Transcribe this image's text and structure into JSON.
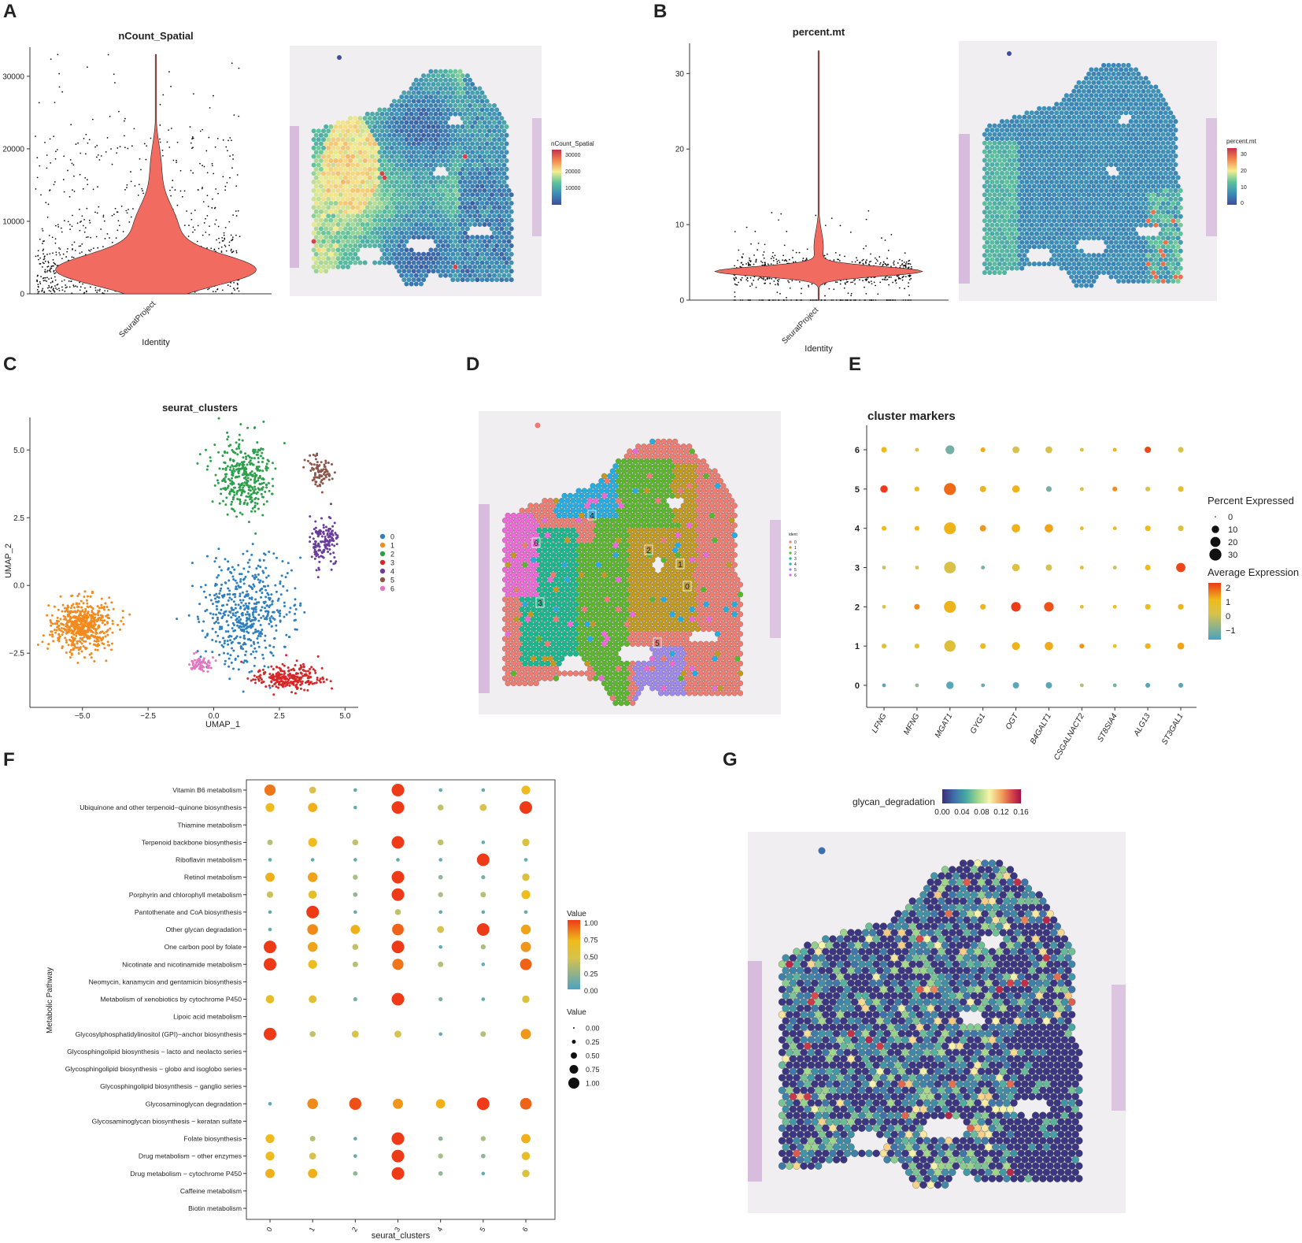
{
  "panels": {
    "A": "A",
    "B": "B",
    "C": "C",
    "D": "D",
    "E": "E",
    "F": "F",
    "G": "G"
  },
  "chart_data": [
    {
      "id": "A-violin",
      "type": "violin",
      "title": "nCount_Spatial",
      "xlabel": "Identity",
      "ylabel": "",
      "categories": [
        "SeuratProject"
      ],
      "yticks": [
        "0",
        "10000",
        "20000",
        "30000"
      ],
      "ylim": [
        0,
        34000
      ],
      "median": 3200,
      "max": 33000,
      "color": "#f26b60"
    },
    {
      "id": "A-spatial",
      "type": "heatmap",
      "legend_title": "nCount_Spatial",
      "legend_ticks": [
        "30000",
        "20000",
        "10000"
      ],
      "colors": [
        "#3e4e9c",
        "#3b8cb8",
        "#5cc39b",
        "#f4ee8e",
        "#f5874c",
        "#c62f4a"
      ]
    },
    {
      "id": "B-violin",
      "type": "violin",
      "title": "percent.mt",
      "xlabel": "Identity",
      "ylabel": "",
      "categories": [
        "SeuratProject"
      ],
      "yticks": [
        "0",
        "10",
        "20",
        "30"
      ],
      "ylim": [
        0,
        34
      ],
      "median": 3.8,
      "max": 33,
      "color": "#f26b60"
    },
    {
      "id": "B-spatial",
      "type": "heatmap",
      "legend_title": "percent.mt",
      "legend_ticks": [
        "30",
        "20",
        "10",
        "0"
      ],
      "colors": [
        "#3e4e9c",
        "#3b8cb8",
        "#5cc39b",
        "#f4ee8e",
        "#f5874c",
        "#c62f4a"
      ]
    },
    {
      "id": "C-umap",
      "type": "scatter",
      "title": "seurat_clusters",
      "xlabel": "UMAP_1",
      "ylabel": "UMAP_2",
      "xticks": [
        "-5.0",
        "-2.5",
        "0.0",
        "2.5",
        "5.0"
      ],
      "yticks": [
        "-2.5",
        "0.0",
        "2.5",
        "5.0"
      ],
      "xlim": [
        -7,
        5.5
      ],
      "ylim": [
        -4.5,
        6.2
      ],
      "legend": [
        {
          "label": "0",
          "color": "#2f7fbe"
        },
        {
          "label": "1",
          "color": "#f28a1e"
        },
        {
          "label": "2",
          "color": "#2c9f4b"
        },
        {
          "label": "3",
          "color": "#d62728"
        },
        {
          "label": "4",
          "color": "#6a3d9a"
        },
        {
          "label": "5",
          "color": "#8c564b"
        },
        {
          "label": "6",
          "color": "#e377c2"
        }
      ],
      "cluster_centers": [
        {
          "cluster": "0",
          "x": 1.2,
          "y": -1.0
        },
        {
          "cluster": "1",
          "x": -5.0,
          "y": -1.5
        },
        {
          "cluster": "2",
          "x": 1.2,
          "y": 4.0
        },
        {
          "cluster": "3",
          "x": 2.8,
          "y": -3.4
        },
        {
          "cluster": "4",
          "x": 4.2,
          "y": 1.6
        },
        {
          "cluster": "5",
          "x": 4.0,
          "y": 4.2
        },
        {
          "cluster": "6",
          "x": -0.5,
          "y": -2.9
        }
      ]
    },
    {
      "id": "D-spatial-clusters",
      "type": "heatmap",
      "legend_title": "ident",
      "legend": [
        "0",
        "1",
        "2",
        "3",
        "4",
        "5",
        "6"
      ],
      "labels": [
        "0",
        "1",
        "2",
        "3",
        "4",
        "5",
        "6"
      ]
    },
    {
      "id": "E-dotplot",
      "type": "scatter",
      "title": "cluster markers",
      "genes": [
        "LFNG",
        "MFNG",
        "MGAT1",
        "GYG1",
        "OGT",
        "B4GALT1",
        "CSGALNACT2",
        "ST8SIA4",
        "ALG13",
        "ST3GAL1"
      ],
      "clusters": [
        "6",
        "5",
        "4",
        "3",
        "2",
        "1",
        "0"
      ],
      "legend_size_title": "Percent Expressed",
      "legend_size_ticks": [
        "0",
        "10",
        "20",
        "30"
      ],
      "legend_color_title": "Average Expression",
      "legend_color_ticks": [
        "2",
        "1",
        "0",
        "−1"
      ],
      "pct": [
        [
          3,
          1,
          9,
          2,
          5,
          5,
          1,
          1,
          4,
          3
        ],
        [
          6,
          2,
          18,
          4,
          6,
          3,
          1,
          2,
          2,
          3
        ],
        [
          2,
          2,
          18,
          4,
          8,
          8,
          1,
          1,
          3,
          3
        ],
        [
          1,
          1,
          17,
          1,
          6,
          4,
          1,
          1,
          3,
          10
        ],
        [
          1,
          3,
          18,
          3,
          11,
          11,
          1,
          1,
          3,
          3
        ],
        [
          2,
          2,
          16,
          3,
          7,
          8,
          2,
          1,
          3,
          5
        ],
        [
          1,
          1,
          6,
          1,
          4,
          4,
          1,
          1,
          2,
          2
        ]
      ],
      "avg": [
        [
          0.7,
          0.2,
          -1.0,
          0.9,
          0,
          0,
          0.2,
          0.8,
          1.9,
          0
        ],
        [
          2.1,
          0.7,
          1.6,
          0.8,
          0.8,
          -1.0,
          0.2,
          1.3,
          0,
          0.5
        ],
        [
          0.7,
          0.7,
          0.8,
          1.2,
          0.8,
          1.0,
          0.5,
          0.7,
          0.7,
          0.2
        ],
        [
          -0.2,
          0,
          0.1,
          -1.0,
          0.2,
          0,
          0.3,
          -0.2,
          0.7,
          1.9
        ],
        [
          0,
          1.3,
          0.8,
          0.8,
          2.0,
          1.8,
          0.3,
          0.6,
          0.7,
          0.8
        ],
        [
          0.4,
          0.4,
          0.3,
          0.7,
          0.8,
          0.9,
          1.2,
          0.6,
          0.8,
          1.0
        ],
        [
          -1.2,
          -0.8,
          -1.2,
          -1.1,
          -1.2,
          -1.2,
          -0.5,
          -1.0,
          -1.2,
          -1.2
        ]
      ]
    },
    {
      "id": "F-dotplot",
      "type": "scatter",
      "xlabel": "seurat_clusters",
      "ylabel": "Metabolic Pathway",
      "clusters": [
        "0",
        "1",
        "2",
        "3",
        "4",
        "5",
        "6"
      ],
      "pathways": [
        "Vitamin B6 metabolism",
        "Ubiquinone and other terpenoid−quinone biosynthesis",
        "Thiamine metabolism",
        "Terpenoid backbone biosynthesis",
        "Riboflavin metabolism",
        "Retinol metabolism",
        "Porphyrin and chlorophyll metabolism",
        "Pantothenate and CoA biosynthesis",
        "Other glycan degradation",
        "One carbon pool by folate",
        "Nicotinate and nicotinamide metabolism",
        "Neomycin, kanamycin and gentamicin biosynthesis",
        "Metabolism of xenobiotics by cytochrome P450",
        "Lipoic acid metabolism",
        "Glycosylphosphatidylinositol (GPI)−anchor biosynthesis",
        "Glycosphingolipid biosynthesis − lacto and neolacto series",
        "Glycosphingolipid biosynthesis − globo and isoglobo series",
        "Glycosphingolipid biosynthesis − ganglio series",
        "Glycosaminoglycan degradation",
        "Glycosaminoglycan biosynthesis − keratan sulfate",
        "Folate biosynthesis",
        "Drug metabolism − other enzymes",
        "Drug metabolism − cytochrome P450",
        "Caffeine metabolism",
        "Biotin metabolism"
      ],
      "values": [
        [
          0.85,
          0.4,
          0.05,
          1.0,
          0.05,
          0.05,
          0.6
        ],
        [
          0.6,
          0.65,
          0.05,
          1.0,
          0.3,
          0.4,
          1.0
        ],
        [
          null,
          null,
          null,
          null,
          null,
          null,
          null
        ],
        [
          0.25,
          0.6,
          0.3,
          1.0,
          0.3,
          0.05,
          0.45
        ],
        [
          0.05,
          0.05,
          0.05,
          0.05,
          0.05,
          1.0,
          0.05
        ],
        [
          0.65,
          0.7,
          0.2,
          1.0,
          0.15,
          0.1,
          0.45
        ],
        [
          0.35,
          0.55,
          0.15,
          1.0,
          0.2,
          0.25,
          0.6
        ],
        [
          0.05,
          1.0,
          0.05,
          0.3,
          0.05,
          0.05,
          0.05
        ],
        [
          0.05,
          0.8,
          0.65,
          0.9,
          0.4,
          1.0,
          0.7
        ],
        [
          1.0,
          0.7,
          0.3,
          1.0,
          0.05,
          0.2,
          0.75
        ],
        [
          1.0,
          0.6,
          0.25,
          0.85,
          0.25,
          0.05,
          0.9
        ],
        [
          null,
          null,
          null,
          null,
          null,
          null,
          null
        ],
        [
          0.55,
          0.5,
          0.1,
          1.0,
          0.1,
          0.05,
          0.45
        ],
        [
          null,
          null,
          null,
          null,
          null,
          null,
          null
        ],
        [
          1.0,
          0.3,
          0.4,
          0.4,
          0.05,
          0.25,
          0.75
        ],
        [
          null,
          null,
          null,
          null,
          null,
          null,
          null
        ],
        [
          null,
          null,
          null,
          null,
          null,
          null,
          null
        ],
        [
          null,
          null,
          null,
          null,
          null,
          null,
          null
        ],
        [
          0.05,
          0.8,
          0.95,
          0.75,
          0.65,
          1.0,
          0.9
        ],
        [
          null,
          null,
          null,
          null,
          null,
          null,
          null
        ],
        [
          0.6,
          0.25,
          0.05,
          1.0,
          0.15,
          0.2,
          0.65
        ],
        [
          0.6,
          0.4,
          0.05,
          1.0,
          0.2,
          0.15,
          0.55
        ],
        [
          0.65,
          0.65,
          0.15,
          1.0,
          0.15,
          0.05,
          0.45
        ],
        [
          null,
          null,
          null,
          null,
          null,
          null,
          null
        ],
        [
          null,
          null,
          null,
          null,
          null,
          null,
          null
        ]
      ],
      "legend_color_title": "Value",
      "legend_color_ticks": [
        "1.00",
        "0.75",
        "0.50",
        "0.25",
        "0.00"
      ],
      "legend_size_title": "Value",
      "legend_size_ticks": [
        "0.00",
        "0.25",
        "0.50",
        "0.75",
        "1.00"
      ]
    },
    {
      "id": "G-spatial",
      "type": "heatmap",
      "legend_title": "glycan_degradation",
      "legend_ticks": [
        "0.00",
        "0.04",
        "0.08",
        "0.12",
        "0.16"
      ],
      "colors": [
        "#3b2d7a",
        "#3e6faa",
        "#45a8a3",
        "#9fd68b",
        "#f7f5ad",
        "#f1a35d",
        "#d84a4a",
        "#a50f4a"
      ]
    }
  ]
}
